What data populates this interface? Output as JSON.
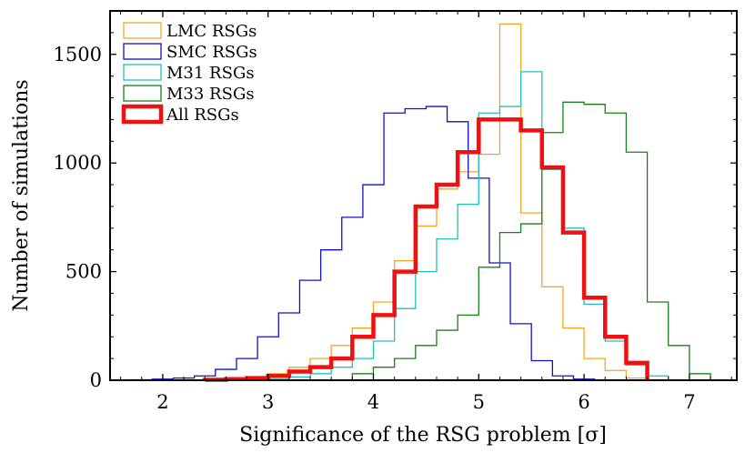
{
  "chart_data": {
    "type": "histogram",
    "title": "",
    "xlabel": "Significance of the RSG problem [σ]",
    "ylabel": "Number of simulations",
    "xlim": [
      1.5,
      7.45
    ],
    "ylim": [
      0,
      1700
    ],
    "xticks": [
      2,
      3,
      4,
      5,
      6,
      7
    ],
    "yticks": [
      0,
      500,
      1000,
      1500
    ],
    "xtick_labels": [
      "2",
      "3",
      "4",
      "5",
      "6",
      "7"
    ],
    "ytick_labels": [
      "0",
      "500",
      "1000",
      "1500"
    ],
    "legend_position": "top-left",
    "series": [
      {
        "name": "LMC RSGs",
        "color": "#f5a623",
        "linewidth": 1.3,
        "edges": [
          2.6,
          2.8,
          3.0,
          3.2,
          3.4,
          3.6,
          3.8,
          4.0,
          4.2,
          4.4,
          4.6,
          4.8,
          5.0,
          5.2,
          5.4,
          5.6,
          5.8,
          6.0,
          6.2,
          6.4,
          6.6
        ],
        "counts": [
          5,
          15,
          30,
          60,
          100,
          160,
          240,
          360,
          550,
          710,
          880,
          960,
          1040,
          1640,
          770,
          430,
          240,
          100,
          45,
          10
        ]
      },
      {
        "name": "SMC RSGs",
        "color": "#1010cc",
        "linewidth": 1.3,
        "edges": [
          1.7,
          1.9,
          2.1,
          2.3,
          2.5,
          2.7,
          2.9,
          3.1,
          3.3,
          3.5,
          3.7,
          3.9,
          4.1,
          4.3,
          4.5,
          4.7,
          4.9,
          5.1,
          5.3,
          5.5,
          5.7,
          5.9,
          6.1
        ],
        "counts": [
          2,
          5,
          10,
          20,
          50,
          100,
          200,
          310,
          460,
          600,
          750,
          900,
          1230,
          1250,
          1260,
          1190,
          930,
          540,
          260,
          90,
          20,
          5
        ]
      },
      {
        "name": "M31 RSGs",
        "color": "#20c0c0",
        "linewidth": 1.3,
        "edges": [
          3.0,
          3.2,
          3.4,
          3.6,
          3.8,
          4.0,
          4.2,
          4.4,
          4.6,
          4.8,
          5.0,
          5.2,
          5.4,
          5.6,
          5.8,
          6.0,
          6.2,
          6.4,
          6.6,
          6.8
        ],
        "counts": [
          5,
          15,
          30,
          60,
          100,
          180,
          330,
          500,
          650,
          810,
          1230,
          1260,
          1420,
          970,
          700,
          350,
          180,
          70,
          20
        ]
      },
      {
        "name": "M33 RSGs",
        "color": "#1a801a",
        "linewidth": 1.3,
        "edges": [
          3.8,
          4.0,
          4.2,
          4.4,
          4.6,
          4.8,
          5.0,
          5.2,
          5.4,
          5.6,
          5.8,
          6.0,
          6.2,
          6.4,
          6.6,
          6.8,
          7.0,
          7.2
        ],
        "counts": [
          30,
          60,
          100,
          160,
          230,
          300,
          520,
          680,
          720,
          1140,
          1280,
          1270,
          1230,
          1050,
          360,
          160,
          30
        ]
      },
      {
        "name": "All RSGs",
        "color": "#ee1111",
        "linewidth": 4.5,
        "edges": [
          2.4,
          2.6,
          2.8,
          3.0,
          3.2,
          3.4,
          3.6,
          3.8,
          4.0,
          4.2,
          4.4,
          4.6,
          4.8,
          5.0,
          5.2,
          5.4,
          5.6,
          5.8,
          6.0,
          6.2,
          6.4,
          6.6
        ],
        "counts": [
          2,
          5,
          10,
          20,
          40,
          60,
          100,
          200,
          300,
          500,
          800,
          900,
          1050,
          1200,
          1200,
          1150,
          980,
          680,
          380,
          200,
          80
        ]
      }
    ]
  }
}
